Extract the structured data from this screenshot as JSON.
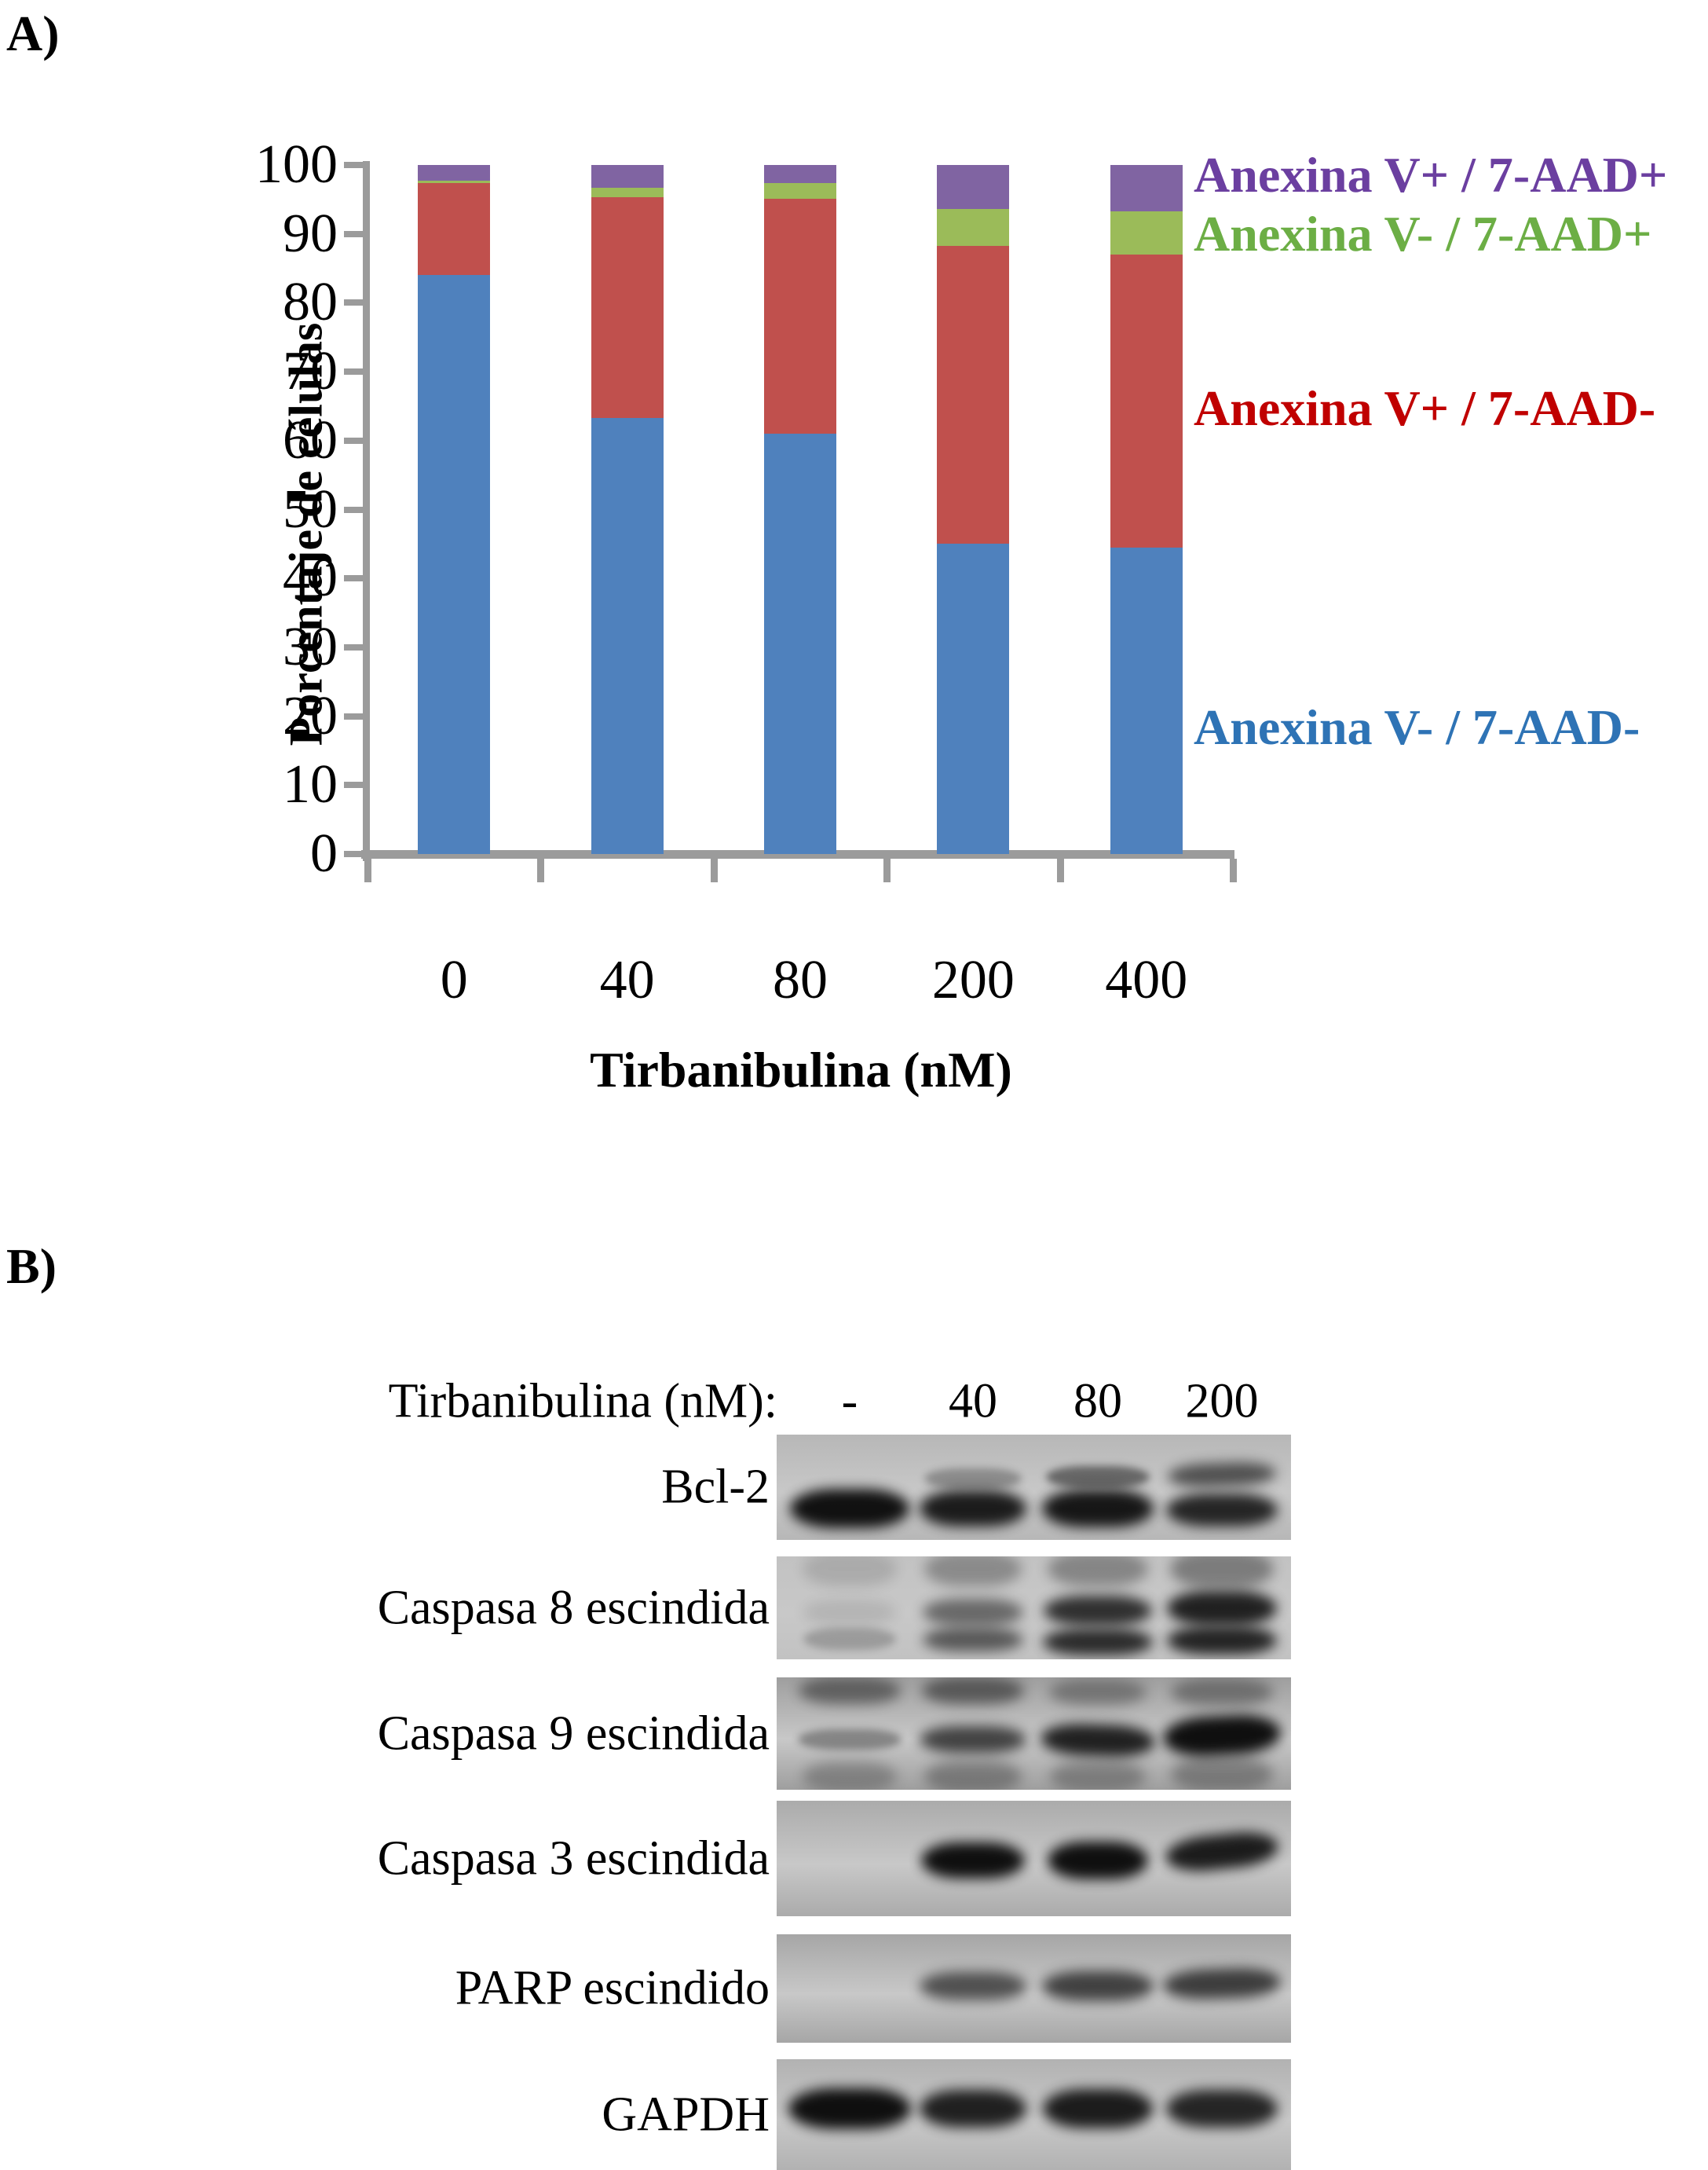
{
  "panel_a": {
    "label": "A)",
    "chart_data": {
      "type": "bar",
      "stacked": true,
      "title": "",
      "xlabel": "Tirbanibulina (nM)",
      "ylabel": "Porcentaje de células",
      "ylim": [
        0,
        100
      ],
      "y_ticks": [
        100,
        90,
        80,
        70,
        60,
        50,
        40,
        30,
        20,
        10,
        0
      ],
      "categories": [
        "0",
        "40",
        "80",
        "200",
        "400"
      ],
      "series": [
        {
          "name": "Anexina V- / 7-AAD-",
          "color": "#4F81BD",
          "values": [
            84.0,
            63.3,
            61.0,
            45.0,
            44.5
          ]
        },
        {
          "name": "Anexina V+ / 7-AAD-",
          "color": "#C0504D",
          "values": [
            13.4,
            32.0,
            34.1,
            43.2,
            42.5
          ]
        },
        {
          "name": "Anexina V- / 7-AAD+",
          "color": "#9BBB59",
          "values": [
            0.3,
            1.4,
            2.3,
            5.4,
            6.3
          ]
        },
        {
          "name": "Anexina V+ / 7-AAD+",
          "color": "#8064A2",
          "values": [
            2.3,
            3.3,
            2.6,
            6.4,
            6.7
          ]
        }
      ],
      "legend_position": "right",
      "grid": false
    },
    "legend": [
      {
        "label": "Anexina V+ / 7-AAD+",
        "text_color": "#6B3FA0"
      },
      {
        "label": "Anexina V- / 7-AAD+",
        "text_color": "#6CAE45"
      },
      {
        "label": "Anexina V+ / 7-AAD-",
        "text_color": "#C00000"
      },
      {
        "label": "Anexina V- / 7-AAD-",
        "text_color": "#2E73B5"
      }
    ]
  },
  "panel_b": {
    "label": "B)",
    "header": "Tirbanibulina (nM):",
    "lanes": [
      "-",
      "40",
      "80",
      "200"
    ],
    "blots": [
      {
        "label": "Bcl-2",
        "bg": "#b7b7b7",
        "bands": [
          [
            0,
            0.7,
            50,
            152,
            0.96,
            0
          ],
          [
            1,
            0.7,
            46,
            136,
            0.9,
            0
          ],
          [
            2,
            0.7,
            48,
            142,
            0.93,
            0
          ],
          [
            3,
            0.72,
            42,
            142,
            0.85,
            0
          ],
          [
            1,
            0.42,
            26,
            124,
            0.3,
            0
          ],
          [
            2,
            0.4,
            28,
            132,
            0.5,
            0
          ],
          [
            3,
            0.38,
            30,
            138,
            0.62,
            -2
          ]
        ]
      },
      {
        "label": "Caspasa 8 escindida",
        "bg": "#c2c2c2",
        "bands": [
          [
            0,
            0.12,
            44,
            120,
            0.13,
            0
          ],
          [
            1,
            0.12,
            44,
            124,
            0.3,
            0
          ],
          [
            2,
            0.12,
            44,
            128,
            0.33,
            0
          ],
          [
            3,
            0.12,
            48,
            132,
            0.38,
            0
          ],
          [
            0,
            0.54,
            30,
            120,
            0.1,
            0
          ],
          [
            1,
            0.54,
            34,
            128,
            0.5,
            0
          ],
          [
            2,
            0.53,
            38,
            138,
            0.8,
            0
          ],
          [
            3,
            0.5,
            44,
            140,
            0.88,
            0
          ],
          [
            0,
            0.8,
            28,
            118,
            0.22,
            0
          ],
          [
            1,
            0.81,
            30,
            128,
            0.58,
            0
          ],
          [
            2,
            0.83,
            34,
            140,
            0.82,
            0
          ],
          [
            3,
            0.82,
            36,
            140,
            0.86,
            0
          ]
        ]
      },
      {
        "label": "Caspasa 9 escindida",
        "bg": "#9e9e9e",
        "bands": [
          [
            0,
            0.12,
            34,
            130,
            0.45,
            0
          ],
          [
            1,
            0.12,
            34,
            130,
            0.5,
            0
          ],
          [
            2,
            0.13,
            32,
            124,
            0.33,
            0
          ],
          [
            3,
            0.13,
            34,
            130,
            0.36,
            0
          ],
          [
            0,
            0.55,
            26,
            132,
            0.35,
            0
          ],
          [
            1,
            0.55,
            34,
            136,
            0.7,
            0
          ],
          [
            2,
            0.56,
            40,
            146,
            0.88,
            2
          ],
          [
            3,
            0.52,
            50,
            150,
            0.97,
            -3
          ],
          [
            0,
            0.88,
            38,
            120,
            0.25,
            0
          ],
          [
            1,
            0.88,
            40,
            124,
            0.3,
            0
          ],
          [
            2,
            0.88,
            38,
            122,
            0.28,
            0
          ],
          [
            3,
            0.86,
            42,
            130,
            0.3,
            0
          ]
        ]
      },
      {
        "label": "Caspasa 3 escindida",
        "bg": "#ababab",
        "bands": [
          [
            1,
            0.52,
            46,
            132,
            0.97,
            0
          ],
          [
            2,
            0.52,
            48,
            128,
            0.97,
            0
          ],
          [
            3,
            0.44,
            44,
            144,
            0.9,
            -6
          ]
        ]
      },
      {
        "label": "PARP escindido",
        "bg": "#a6a6a6",
        "bands": [
          [
            1,
            0.48,
            36,
            136,
            0.62,
            0
          ],
          [
            2,
            0.48,
            38,
            142,
            0.7,
            0
          ],
          [
            3,
            0.46,
            38,
            150,
            0.72,
            -2
          ]
        ]
      },
      {
        "label": "GAPDH",
        "bg": "#b2b2b2",
        "bands": [
          [
            0,
            0.45,
            52,
            156,
            0.97,
            0
          ],
          [
            1,
            0.45,
            48,
            136,
            0.88,
            0
          ],
          [
            2,
            0.45,
            50,
            140,
            0.9,
            0
          ],
          [
            3,
            0.45,
            48,
            142,
            0.85,
            0
          ]
        ]
      }
    ]
  },
  "colors": {
    "axis_gray": "#9b9b9b",
    "bar_blue": "#4F81BD",
    "bar_red": "#C0504D",
    "bar_green": "#9BBB59",
    "bar_purple": "#8064A2"
  }
}
